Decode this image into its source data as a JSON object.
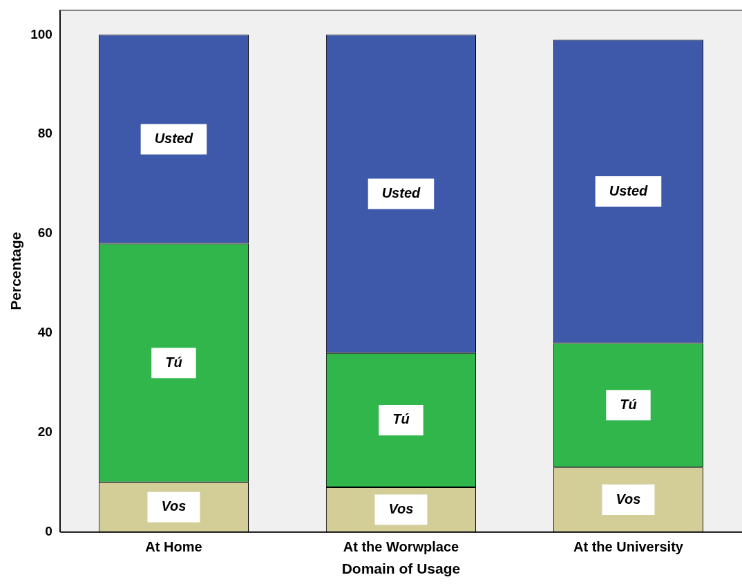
{
  "chart_data": {
    "type": "bar",
    "stacked": true,
    "xlabel": "Domain of Usage",
    "ylabel": "Percentage",
    "categories": [
      "At Home",
      "At the Worwplace",
      "At the University"
    ],
    "series": [
      {
        "name": "Vos",
        "color": "#d3ce98",
        "values": [
          10,
          9,
          13
        ]
      },
      {
        "name": "Tú",
        "color": "#31b64b",
        "values": [
          48,
          27,
          25
        ]
      },
      {
        "name": "Usted",
        "color": "#3e58aa",
        "values": [
          42,
          64,
          61
        ]
      }
    ],
    "ylim": [
      0,
      105
    ],
    "yticks": [
      0,
      20,
      40,
      60,
      80,
      100
    ],
    "legend": false,
    "grid": false
  }
}
